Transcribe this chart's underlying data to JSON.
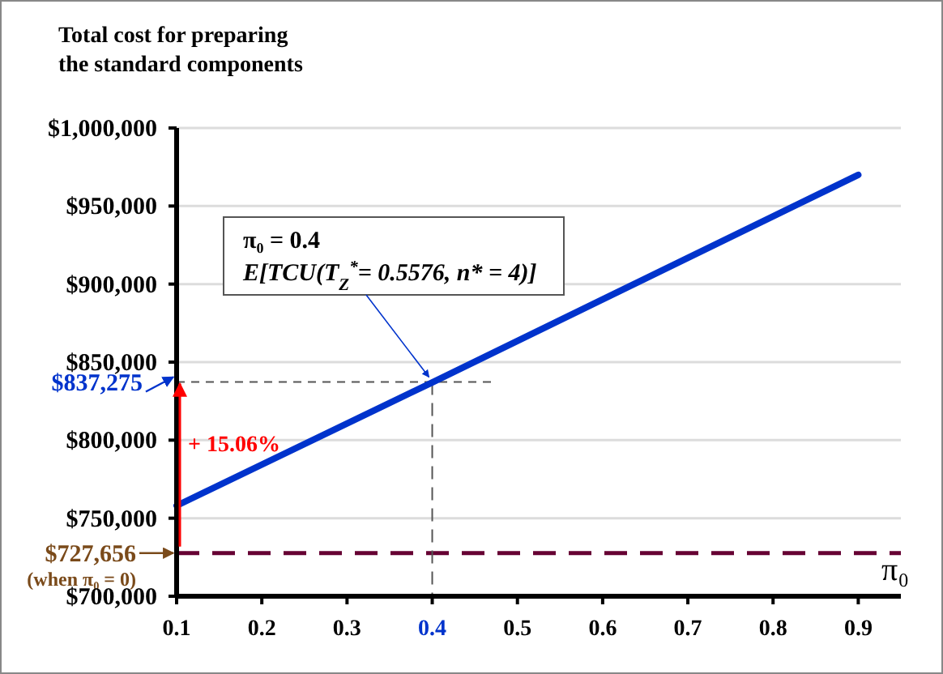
{
  "chart_data": {
    "type": "line",
    "ylabel": "Total cost for preparing\nthe standard components",
    "xlabel": "π₀",
    "x": [
      0.1,
      0.4,
      0.9
    ],
    "series": [
      {
        "color": "#0033cc",
        "values": [
          758000,
          837000,
          970000
        ]
      }
    ],
    "xlim": [
      0.1,
      0.95
    ],
    "xticks": [
      0.1,
      0.2,
      0.3,
      0.4,
      0.5,
      0.6,
      0.7,
      0.8,
      0.9
    ],
    "ylim": [
      700000,
      1000000
    ],
    "yticks": [
      {
        "value": 700000,
        "label": "$700,000"
      },
      {
        "value": 750000,
        "label": "$750,000"
      },
      {
        "value": 800000,
        "label": "$800,000"
      },
      {
        "value": 850000,
        "label": "$850,000"
      },
      {
        "value": 900000,
        "label": "$900,000"
      },
      {
        "value": 950000,
        "label": "$950,000"
      },
      {
        "value": 1000000,
        "label": "$1,000,000"
      }
    ],
    "grid": "y",
    "marker": "none",
    "line_style": "solid",
    "ref_lines": [
      {
        "axis": "y",
        "value": 727656,
        "label": "$727,656\n(when π₀ = 0)",
        "color": "#660033",
        "line_style": "dashed"
      },
      {
        "axis": "y",
        "value": 837275,
        "label": "$837,275",
        "color": "#555555",
        "line_style": "dashed"
      },
      {
        "axis": "x",
        "value": 0.4,
        "color": "#555555",
        "line_style": "dashed"
      }
    ],
    "annotations": [
      {
        "text": "π₀ = 0.4\nE[TCU(T$_{Z}$$^{*}$= 0.5576, n* = 4)]",
        "x": 0.4,
        "y": 837275
      },
      "+ 15.06%"
    ]
  }
}
